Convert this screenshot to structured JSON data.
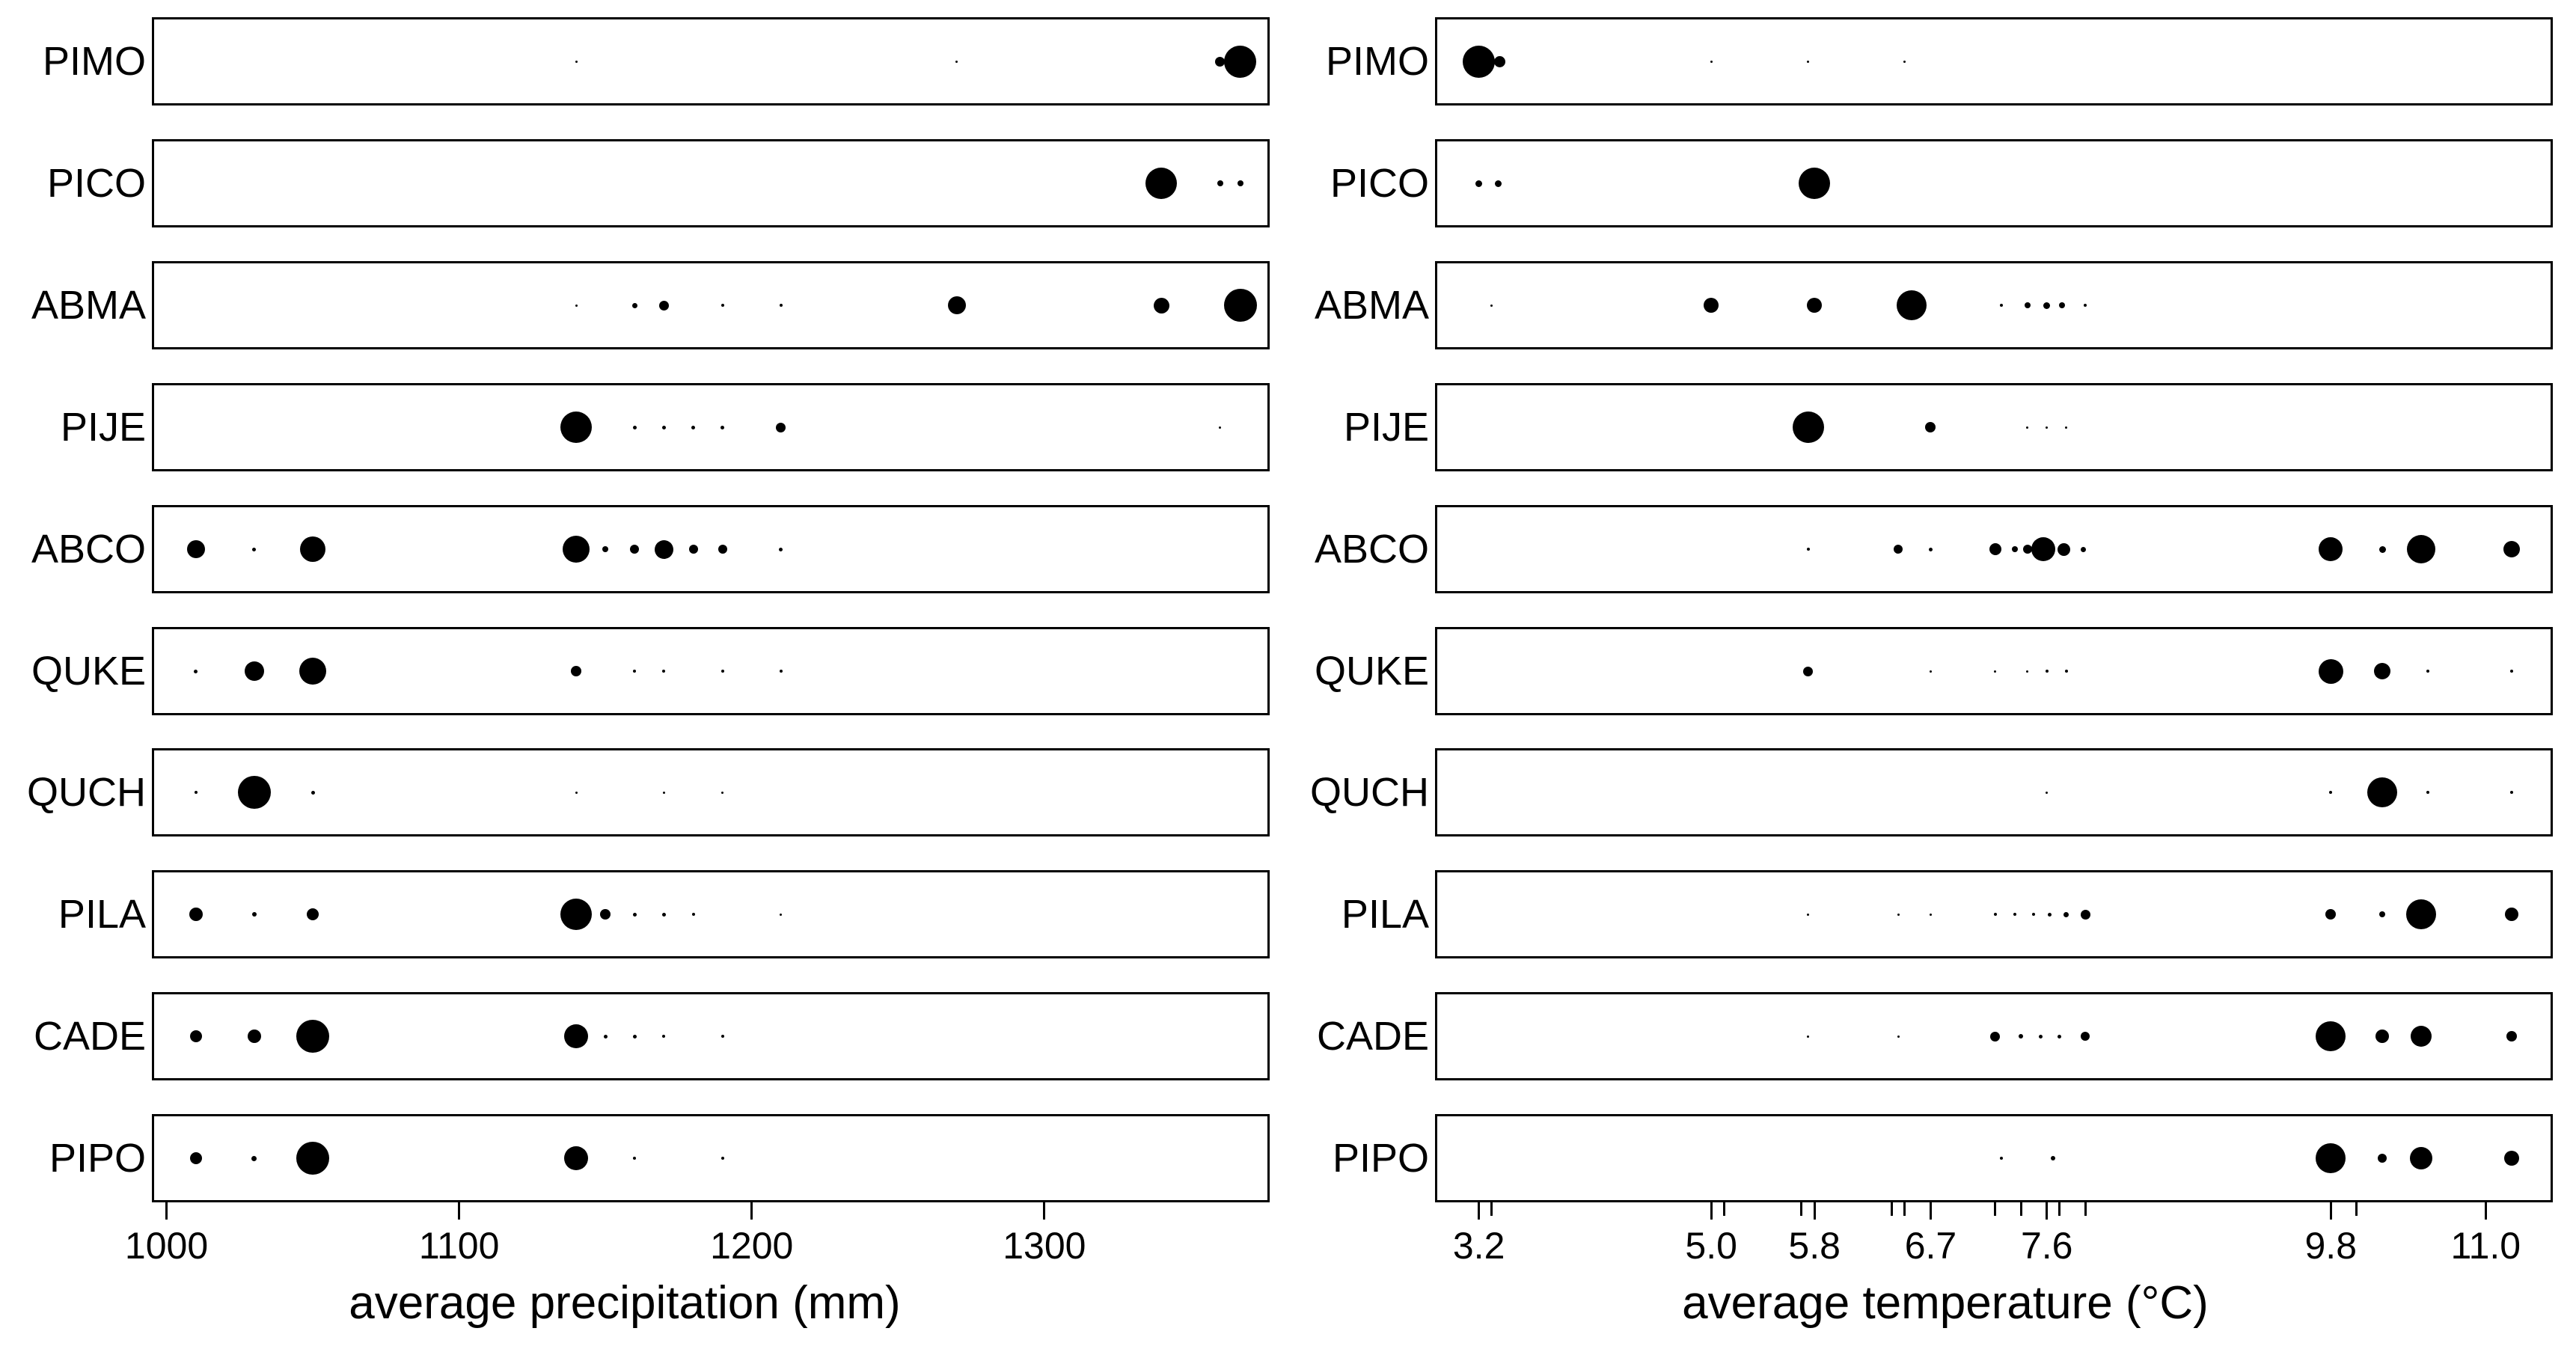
{
  "figure": {
    "background_color": "#ffffff",
    "ink_color": "#000000"
  },
  "chart_data": [
    {
      "id": "precipitation-panel",
      "type": "scatter",
      "title": "",
      "xlabel": "average precipitation (mm)",
      "ylabel": "",
      "grid": false,
      "legend": "none",
      "note": "bubble column: one boxed strip per species; dot x = site average precipitation, dot size = relative frequency; points stored as [x_value, diameter_px]",
      "categories": [
        "PIMO",
        "PICO",
        "ABMA",
        "PIJE",
        "ABCO",
        "QUKE",
        "QUCH",
        "PILA",
        "CADE",
        "PIPO"
      ],
      "x_range": [
        995,
        1377
      ],
      "x_ticks": [
        {
          "value": 1000,
          "label": "1000"
        },
        {
          "value": 1100,
          "label": "1100"
        },
        {
          "value": 1200,
          "label": "1200"
        },
        {
          "value": 1300,
          "label": "1300"
        }
      ],
      "x_minor_ticks": [],
      "series": [
        {
          "name": "PIMO",
          "points": [
            [
              1140,
              3
            ],
            [
              1270,
              3
            ],
            [
              1360,
              13
            ],
            [
              1367,
              43
            ]
          ]
        },
        {
          "name": "PICO",
          "points": [
            [
              1340,
              42
            ],
            [
              1360,
              8
            ],
            [
              1367,
              8
            ]
          ]
        },
        {
          "name": "ABMA",
          "points": [
            [
              1140,
              3
            ],
            [
              1160,
              7
            ],
            [
              1170,
              13
            ],
            [
              1190,
              4
            ],
            [
              1210,
              4
            ],
            [
              1270,
              24
            ],
            [
              1340,
              21
            ],
            [
              1367,
              44
            ]
          ]
        },
        {
          "name": "PIJE",
          "points": [
            [
              1140,
              42
            ],
            [
              1160,
              5
            ],
            [
              1170,
              5
            ],
            [
              1180,
              5
            ],
            [
              1190,
              5
            ],
            [
              1210,
              13
            ],
            [
              1360,
              3
            ]
          ]
        },
        {
          "name": "ABCO",
          "points": [
            [
              1010,
              24
            ],
            [
              1030,
              5
            ],
            [
              1050,
              34
            ],
            [
              1140,
              36
            ],
            [
              1150,
              8
            ],
            [
              1160,
              12
            ],
            [
              1170,
              25
            ],
            [
              1180,
              12
            ],
            [
              1190,
              12
            ],
            [
              1210,
              5
            ]
          ]
        },
        {
          "name": "QUKE",
          "points": [
            [
              1010,
              5
            ],
            [
              1030,
              26
            ],
            [
              1050,
              36
            ],
            [
              1140,
              14
            ],
            [
              1160,
              4
            ],
            [
              1170,
              4
            ],
            [
              1190,
              4
            ],
            [
              1210,
              4
            ]
          ]
        },
        {
          "name": "QUCH",
          "points": [
            [
              1010,
              4
            ],
            [
              1030,
              44
            ],
            [
              1050,
              5
            ],
            [
              1140,
              3
            ],
            [
              1170,
              3
            ],
            [
              1190,
              3
            ]
          ]
        },
        {
          "name": "PILA",
          "points": [
            [
              1010,
              18
            ],
            [
              1030,
              6
            ],
            [
              1050,
              16
            ],
            [
              1140,
              42
            ],
            [
              1150,
              14
            ],
            [
              1160,
              5
            ],
            [
              1170,
              5
            ],
            [
              1180,
              4
            ],
            [
              1210,
              3
            ]
          ]
        },
        {
          "name": "CADE",
          "points": [
            [
              1010,
              16
            ],
            [
              1030,
              18
            ],
            [
              1050,
              44
            ],
            [
              1140,
              32
            ],
            [
              1150,
              5
            ],
            [
              1160,
              5
            ],
            [
              1170,
              4
            ],
            [
              1190,
              4
            ]
          ]
        },
        {
          "name": "PIPO",
          "points": [
            [
              1010,
              16
            ],
            [
              1030,
              7
            ],
            [
              1050,
              44
            ],
            [
              1140,
              32
            ],
            [
              1160,
              4
            ],
            [
              1190,
              4
            ]
          ]
        }
      ]
    },
    {
      "id": "temperature-panel",
      "type": "scatter",
      "title": "",
      "xlabel": "average temperature (°C)",
      "ylabel": "",
      "grid": false,
      "legend": "none",
      "note": "bubble column: one boxed strip per species; dot x = site average temperature, dot size = relative frequency; small unlabeled axis ticks mark additional site values; points stored as [x_value, diameter_px]",
      "categories": [
        "PIMO",
        "PICO",
        "ABMA",
        "PIJE",
        "ABCO",
        "QUKE",
        "QUCH",
        "PILA",
        "CADE",
        "PIPO"
      ],
      "x_range": [
        2.86,
        11.52
      ],
      "x_ticks": [
        {
          "value": 3.2,
          "label": "3.2"
        },
        {
          "value": 5.0,
          "label": "5.0"
        },
        {
          "value": 5.8,
          "label": "5.8"
        },
        {
          "value": 6.7,
          "label": "6.7"
        },
        {
          "value": 7.6,
          "label": "7.6"
        },
        {
          "value": 9.8,
          "label": "9.8"
        },
        {
          "value": 11.0,
          "label": "11.0"
        }
      ],
      "x_minor_ticks": [
        3.3,
        5.1,
        5.7,
        6.4,
        6.5,
        7.2,
        7.4,
        7.7,
        7.9,
        10.0
      ],
      "series": [
        {
          "name": "PIMO",
          "points": [
            [
              3.2,
              43
            ],
            [
              3.36,
              15
            ],
            [
              5.0,
              3
            ],
            [
              5.75,
              3
            ],
            [
              6.5,
              3
            ]
          ]
        },
        {
          "name": "PICO",
          "points": [
            [
              3.2,
              9
            ],
            [
              3.35,
              9
            ],
            [
              5.8,
              42
            ]
          ]
        },
        {
          "name": "ABMA",
          "points": [
            [
              3.3,
              3
            ],
            [
              5.0,
              20
            ],
            [
              5.8,
              20
            ],
            [
              6.55,
              40
            ],
            [
              7.25,
              4
            ],
            [
              7.45,
              8
            ],
            [
              7.6,
              9
            ],
            [
              7.72,
              8
            ],
            [
              7.9,
              4
            ]
          ]
        },
        {
          "name": "PIJE",
          "points": [
            [
              5.75,
              42
            ],
            [
              6.7,
              14
            ],
            [
              7.45,
              3
            ],
            [
              7.6,
              3
            ],
            [
              7.75,
              3
            ]
          ]
        },
        {
          "name": "ABCO",
          "points": [
            [
              5.75,
              4
            ],
            [
              6.45,
              12
            ],
            [
              6.7,
              5
            ],
            [
              7.2,
              16
            ],
            [
              7.35,
              8
            ],
            [
              7.45,
              12
            ],
            [
              7.57,
              32
            ],
            [
              7.73,
              17
            ],
            [
              7.88,
              7
            ],
            [
              9.8,
              32
            ],
            [
              10.2,
              9
            ],
            [
              10.5,
              38
            ],
            [
              11.2,
              22
            ]
          ]
        },
        {
          "name": "QUKE",
          "points": [
            [
              5.75,
              13
            ],
            [
              6.7,
              3
            ],
            [
              7.2,
              3
            ],
            [
              7.45,
              3
            ],
            [
              7.6,
              4
            ],
            [
              7.75,
              4
            ],
            [
              9.8,
              33
            ],
            [
              10.2,
              22
            ],
            [
              10.55,
              4
            ],
            [
              11.2,
              4
            ]
          ]
        },
        {
          "name": "QUCH",
          "points": [
            [
              7.6,
              3
            ],
            [
              9.8,
              4
            ],
            [
              10.2,
              40
            ],
            [
              10.55,
              4
            ],
            [
              11.2,
              4
            ]
          ]
        },
        {
          "name": "PILA",
          "points": [
            [
              5.75,
              3
            ],
            [
              6.45,
              3
            ],
            [
              6.7,
              3
            ],
            [
              7.2,
              4
            ],
            [
              7.35,
              4
            ],
            [
              7.5,
              4
            ],
            [
              7.62,
              5
            ],
            [
              7.75,
              7
            ],
            [
              7.9,
              13
            ],
            [
              9.8,
              14
            ],
            [
              10.2,
              8
            ],
            [
              10.5,
              40
            ],
            [
              11.2,
              18
            ]
          ]
        },
        {
          "name": "CADE",
          "points": [
            [
              5.75,
              3
            ],
            [
              6.45,
              3
            ],
            [
              7.2,
              13
            ],
            [
              7.4,
              6
            ],
            [
              7.55,
              5
            ],
            [
              7.7,
              5
            ],
            [
              7.9,
              12
            ],
            [
              9.8,
              40
            ],
            [
              10.2,
              18
            ],
            [
              10.5,
              28
            ],
            [
              11.2,
              14
            ]
          ]
        },
        {
          "name": "PIPO",
          "points": [
            [
              7.25,
              4
            ],
            [
              7.65,
              6
            ],
            [
              9.8,
              40
            ],
            [
              10.2,
              12
            ],
            [
              10.5,
              30
            ],
            [
              11.2,
              20
            ]
          ]
        }
      ]
    }
  ]
}
